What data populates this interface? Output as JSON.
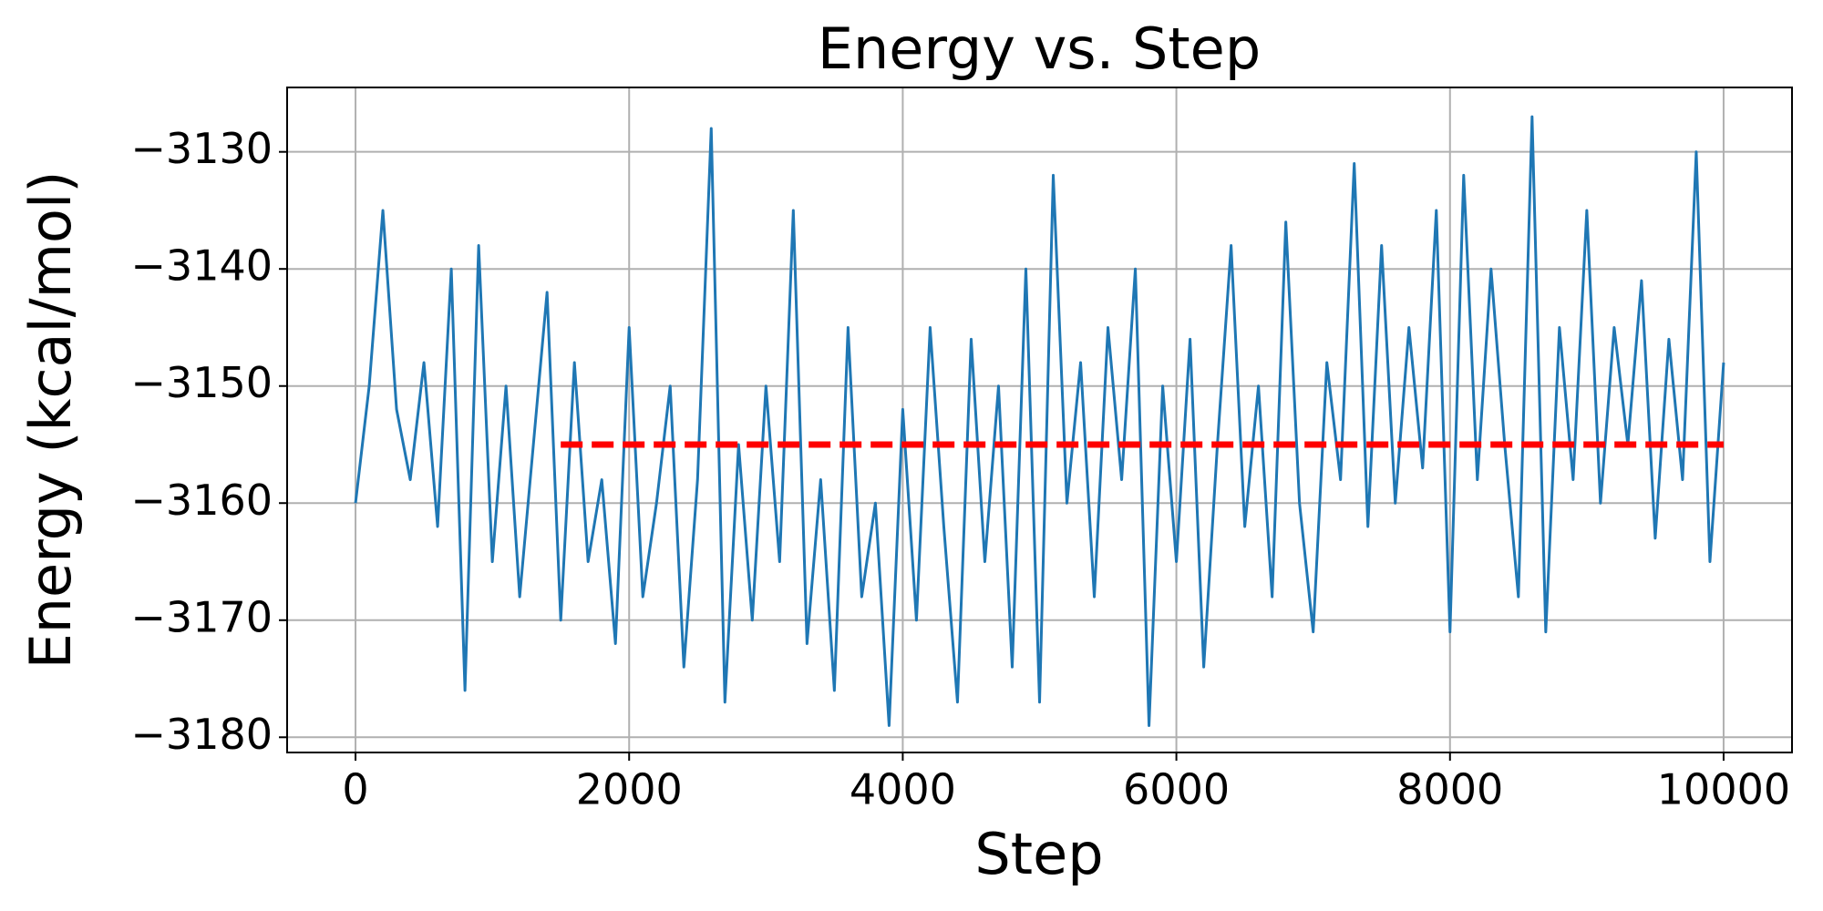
{
  "chart_data": {
    "type": "line",
    "title": "Energy vs. Step",
    "x_label": "Step",
    "y_label": "Energy (kcal/mol)",
    "xlim": [
      -500,
      10500
    ],
    "ylim": [
      -3181.3,
      -3124.5
    ],
    "xticks": [
      0,
      2000,
      4000,
      6000,
      8000,
      10000
    ],
    "yticks": [
      {
        "value": -3180,
        "label": "−3180"
      },
      {
        "value": -3170,
        "label": "−3170"
      },
      {
        "value": -3160,
        "label": "−3160"
      },
      {
        "value": -3150,
        "label": "−3150"
      },
      {
        "value": -3140,
        "label": "−3140"
      },
      {
        "value": -3130,
        "label": "−3130"
      }
    ],
    "grid": true,
    "series": [
      {
        "color": "#1f77b4",
        "style": "solid",
        "x": [
          0,
          100,
          200,
          300,
          400,
          500,
          600,
          700,
          800,
          900,
          1000,
          1100,
          1200,
          1300,
          1400,
          1500,
          1600,
          1700,
          1800,
          1900,
          2000,
          2100,
          2200,
          2300,
          2400,
          2500,
          2600,
          2700,
          2800,
          2900,
          3000,
          3100,
          3200,
          3300,
          3400,
          3500,
          3600,
          3700,
          3800,
          3900,
          4000,
          4100,
          4200,
          4300,
          4400,
          4500,
          4600,
          4700,
          4800,
          4900,
          5000,
          5100,
          5200,
          5300,
          5400,
          5500,
          5600,
          5700,
          5800,
          5900,
          6000,
          6100,
          6200,
          6300,
          6400,
          6500,
          6600,
          6700,
          6800,
          6900,
          7000,
          7100,
          7200,
          7300,
          7400,
          7500,
          7600,
          7700,
          7800,
          7900,
          8000,
          8100,
          8200,
          8300,
          8400,
          8500,
          8600,
          8700,
          8800,
          8900,
          9000,
          9100,
          9200,
          9300,
          9400,
          9500,
          9600,
          9700,
          9800,
          9900,
          10000
        ],
        "values": [
          -3160,
          -3150,
          -3135,
          -3152,
          -3158,
          -3148,
          -3162,
          -3140,
          -3176,
          -3138,
          -3165,
          -3150,
          -3168,
          -3155,
          -3142,
          -3170,
          -3148,
          -3165,
          -3158,
          -3172,
          -3145,
          -3168,
          -3160,
          -3150,
          -3174,
          -3158,
          -3128,
          -3177,
          -3155,
          -3170,
          -3150,
          -3165,
          -3135,
          -3172,
          -3158,
          -3176,
          -3145,
          -3168,
          -3160,
          -3179,
          -3152,
          -3170,
          -3145,
          -3162,
          -3177,
          -3146,
          -3165,
          -3150,
          -3174,
          -3140,
          -3177,
          -3132,
          -3160,
          -3148,
          -3168,
          -3145,
          -3158,
          -3140,
          -3179,
          -3150,
          -3165,
          -3146,
          -3174,
          -3155,
          -3138,
          -3162,
          -3150,
          -3168,
          -3136,
          -3160,
          -3171,
          -3148,
          -3158,
          -3131,
          -3162,
          -3138,
          -3160,
          -3145,
          -3157,
          -3135,
          -3171,
          -3132,
          -3158,
          -3140,
          -3155,
          -3168,
          -3127,
          -3171,
          -3145,
          -3158,
          -3135,
          -3160,
          -3145,
          -3155,
          -3141,
          -3163,
          -3146,
          -3158,
          -3130,
          -3165,
          -3148
        ]
      },
      {
        "color": "#ff0000",
        "style": "dashed",
        "x": [
          1500,
          10000
        ],
        "values": [
          -3155,
          -3155
        ]
      }
    ]
  }
}
